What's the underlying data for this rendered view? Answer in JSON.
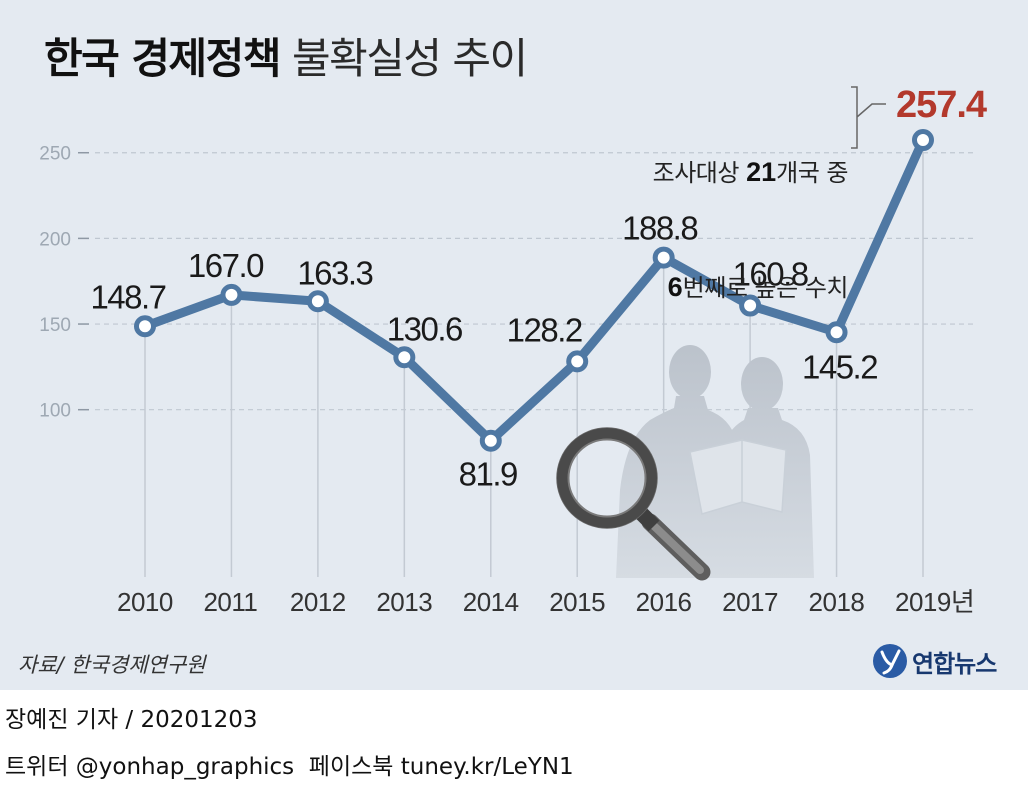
{
  "chart_data": {
    "type": "line",
    "title": {
      "bold": "한국 경제정책",
      "light": "불확실성 추이"
    },
    "categories": [
      "2010",
      "2011",
      "2012",
      "2013",
      "2014",
      "2015",
      "2016",
      "2017",
      "2018",
      "2019년"
    ],
    "values": [
      148.7,
      167.0,
      163.3,
      130.6,
      81.9,
      128.2,
      188.8,
      160.8,
      145.2,
      257.4
    ],
    "value_labels": [
      "148.7",
      "167.0",
      "163.3",
      "130.6",
      "81.9",
      "128.2",
      "188.8",
      "160.8",
      "145.2",
      "257.4"
    ],
    "value_label_colors": [
      "#1a1a1a",
      "#1a1a1a",
      "#1a1a1a",
      "#1a1a1a",
      "#1a1a1a",
      "#1a1a1a",
      "#1a1a1a",
      "#1a1a1a",
      "#1a1a1a",
      "#b3392c"
    ],
    "y_ticks": [
      100,
      150,
      200,
      250
    ],
    "ylim": [
      0,
      260
    ],
    "grid": true,
    "annotation": {
      "line1_prefix": "조사대상 ",
      "line1_number": "21",
      "line1_suffix": "개국 중",
      "line2_number": "6",
      "line2_suffix": "번째로 높은 수치"
    },
    "colors": {
      "series": "#4f78a3",
      "point_fill": "#ffffff",
      "highlight": "#b3392c"
    }
  },
  "source": "자료/ 한국경제연구원",
  "logo": {
    "text": "연합뉴스",
    "icon": "yonhap-logo-icon",
    "color": "#2a5ba5"
  },
  "footer": {
    "byline": "장예진 기자 / 20201203",
    "social": "트위터 @yonhap_graphics  페이스북 tuney.kr/LeYN1"
  },
  "colors": {
    "panel_background": "#e4eaf1",
    "text": "#222222"
  }
}
